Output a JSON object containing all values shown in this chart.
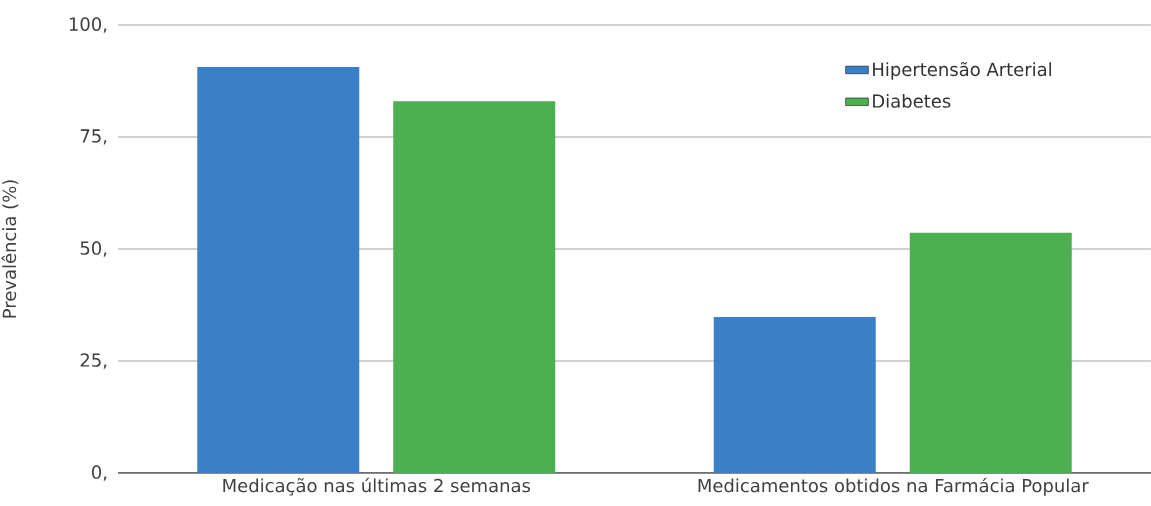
{
  "chart_data": {
    "type": "bar",
    "ylabel": "Prevalência (%)",
    "categories": [
      "Medicação nas últimas 2 semanas",
      "Medicamentos obtidos na Farmácia Popular"
    ],
    "series": [
      {
        "name": "Hipertensão Arterial",
        "color": "#3a80c9",
        "values": [
          90.6,
          34.8
        ]
      },
      {
        "name": "Diabetes",
        "color": "#4caf50",
        "values": [
          83.0,
          53.6
        ]
      }
    ],
    "ylim": [
      0,
      100
    ],
    "yticks": [
      {
        "value": 0,
        "label": "0,"
      },
      {
        "value": 25,
        "label": "25,"
      },
      {
        "value": 50,
        "label": "50,"
      },
      {
        "value": 75,
        "label": "75,"
      },
      {
        "value": 100,
        "label": "100,"
      }
    ],
    "grid": "y",
    "legend": "top right"
  }
}
